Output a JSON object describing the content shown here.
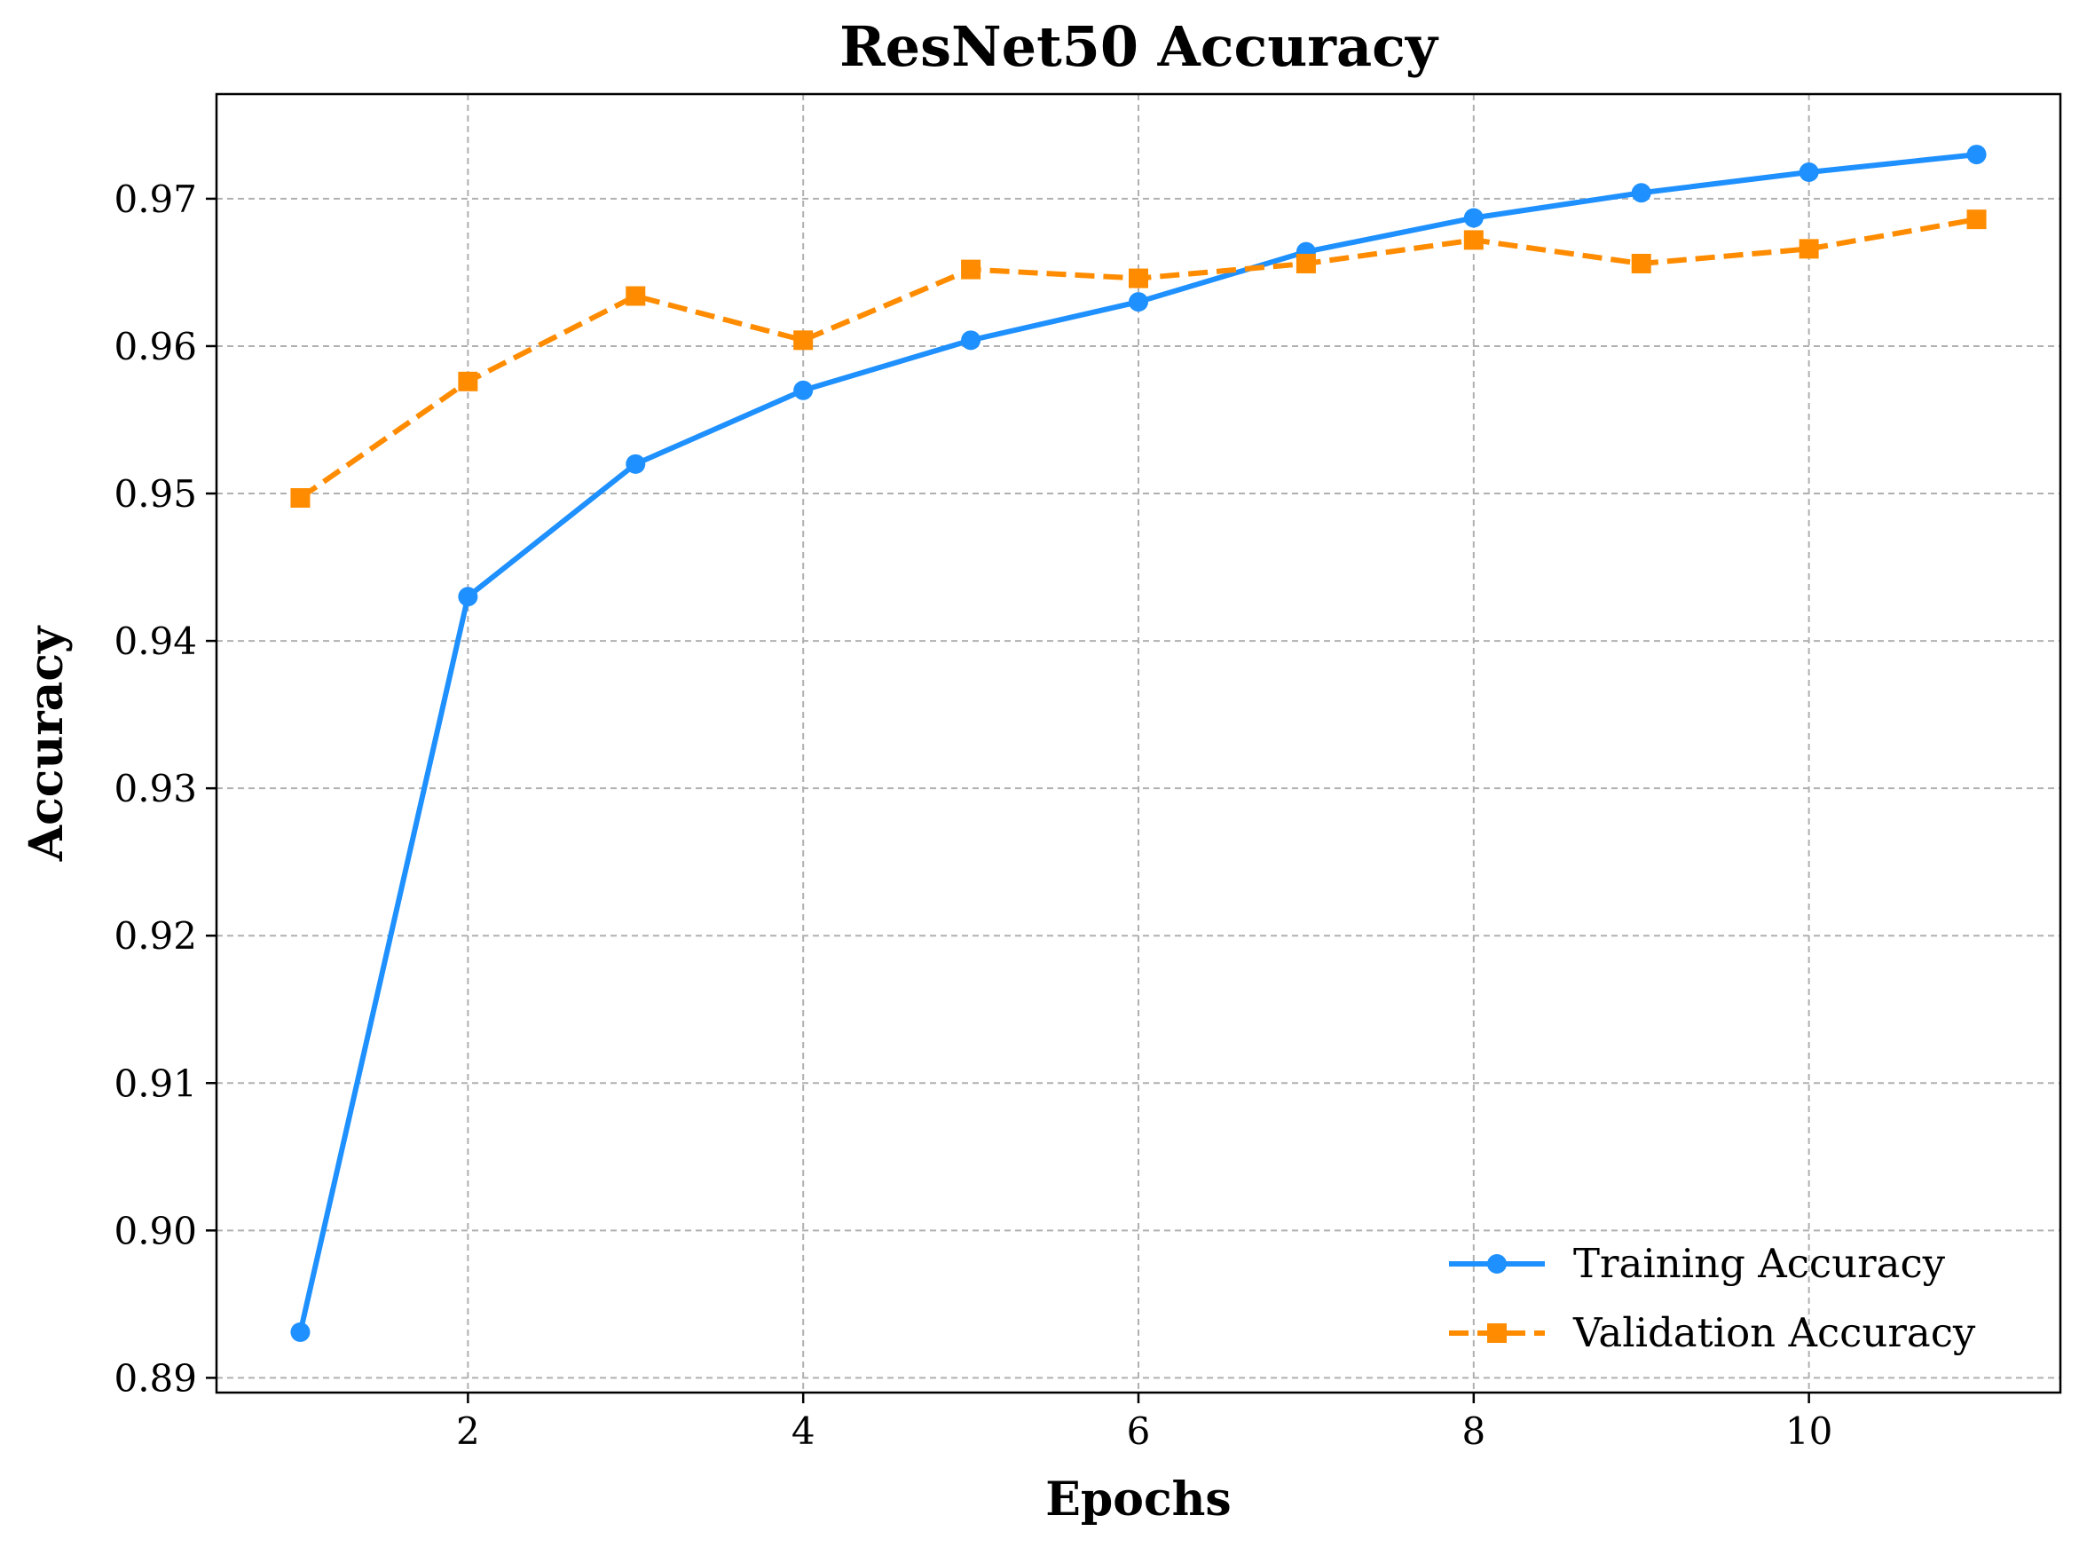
{
  "chart_data": {
    "type": "line",
    "title": "ResNet50 Accuracy",
    "xlabel": "Epochs",
    "ylabel": "Accuracy",
    "xlim": [
      0.5,
      11.5
    ],
    "ylim": [
      0.889,
      0.9771
    ],
    "x_ticks": [
      2,
      4,
      6,
      8,
      10
    ],
    "x_tick_labels": [
      "2",
      "4",
      "6",
      "8",
      "10"
    ],
    "y_ticks": [
      0.89,
      0.9,
      0.91,
      0.92,
      0.93,
      0.94,
      0.95,
      0.96,
      0.97
    ],
    "y_tick_labels": [
      "0.89",
      "0.90",
      "0.91",
      "0.92",
      "0.93",
      "0.94",
      "0.95",
      "0.96",
      "0.97"
    ],
    "grid": true,
    "legend_position": "bottom-right",
    "x": [
      1,
      2,
      3,
      4,
      5,
      6,
      7,
      8,
      9,
      10,
      11
    ],
    "series": [
      {
        "name": "Training Accuracy",
        "color": "#1e90ff",
        "line_style": "solid",
        "marker": "circle",
        "values": [
          0.8931,
          0.943,
          0.952,
          0.957,
          0.9604,
          0.963,
          0.9664,
          0.9687,
          0.9704,
          0.9718,
          0.973
        ]
      },
      {
        "name": "Validation Accuracy",
        "color": "#ff8c00",
        "line_style": "dashed",
        "marker": "square",
        "values": [
          0.9497,
          0.9576,
          0.9634,
          0.9604,
          0.9652,
          0.9646,
          0.9656,
          0.9672,
          0.9656,
          0.9666,
          0.9686
        ]
      }
    ]
  }
}
